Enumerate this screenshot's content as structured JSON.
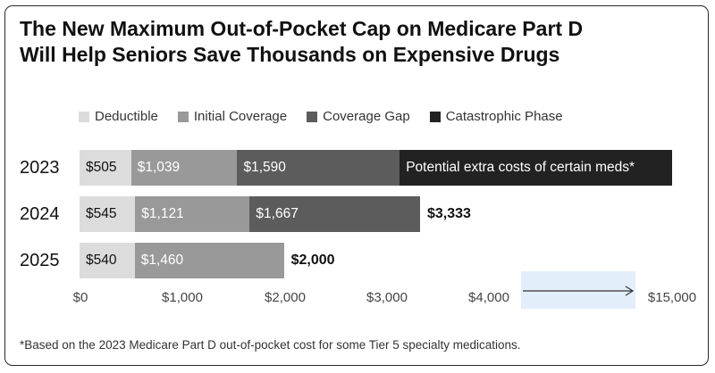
{
  "header": {
    "title_line1": "The New Maximum Out-of-Pocket Cap on Medicare Part D",
    "title_line2": "Will Help Seniors Save Thousands on Expensive Drugs"
  },
  "colors": {
    "deductible": "#dcdcdc",
    "initial_coverage": "#999999",
    "coverage_gap": "#5c5c5c",
    "catastrophic": "#222222"
  },
  "chart_data": {
    "type": "bar",
    "orientation": "horizontal",
    "stacked": true,
    "title": "The New Maximum Out-of-Pocket Cap on Medicare Part D Will Help Seniors Save Thousands on Expensive Drugs",
    "legend_position": "top-left",
    "legend": [
      "Deductible",
      "Initial Coverage",
      "Coverage Gap",
      "Catastrophic Phase"
    ],
    "categories": [
      "2023",
      "2024",
      "2025"
    ],
    "series": [
      {
        "name": "Deductible",
        "values": [
          505,
          545,
          540
        ],
        "labels": [
          "$505",
          "$545",
          "$540"
        ]
      },
      {
        "name": "Initial Coverage",
        "values": [
          1039,
          1121,
          1460
        ],
        "labels": [
          "$1,039",
          "$1,121",
          "$1,460"
        ]
      },
      {
        "name": "Coverage Gap",
        "values": [
          1590,
          1667,
          null
        ],
        "labels": [
          "$1,590",
          "$1,667",
          ""
        ]
      },
      {
        "name": "Catastrophic Phase",
        "values": [
          null,
          null,
          null
        ],
        "labels": [
          "Potential extra costs of certain meds*",
          "",
          ""
        ]
      }
    ],
    "totals": [
      "",
      "$3,333",
      "$2,000"
    ],
    "x_ticks": [
      "$0",
      "$1,000",
      "$2,000",
      "$3,000",
      "$4,000",
      "$15,000"
    ],
    "x_tick_values": [
      0,
      1000,
      2000,
      3000,
      4000,
      15000
    ],
    "xlim": [
      0,
      15000
    ],
    "axis_break": "between $4,000 and $15,000",
    "footnote": "*Based on the 2023 Medicare Part D out-of-pocket cost for some Tier 5 specialty medications."
  }
}
